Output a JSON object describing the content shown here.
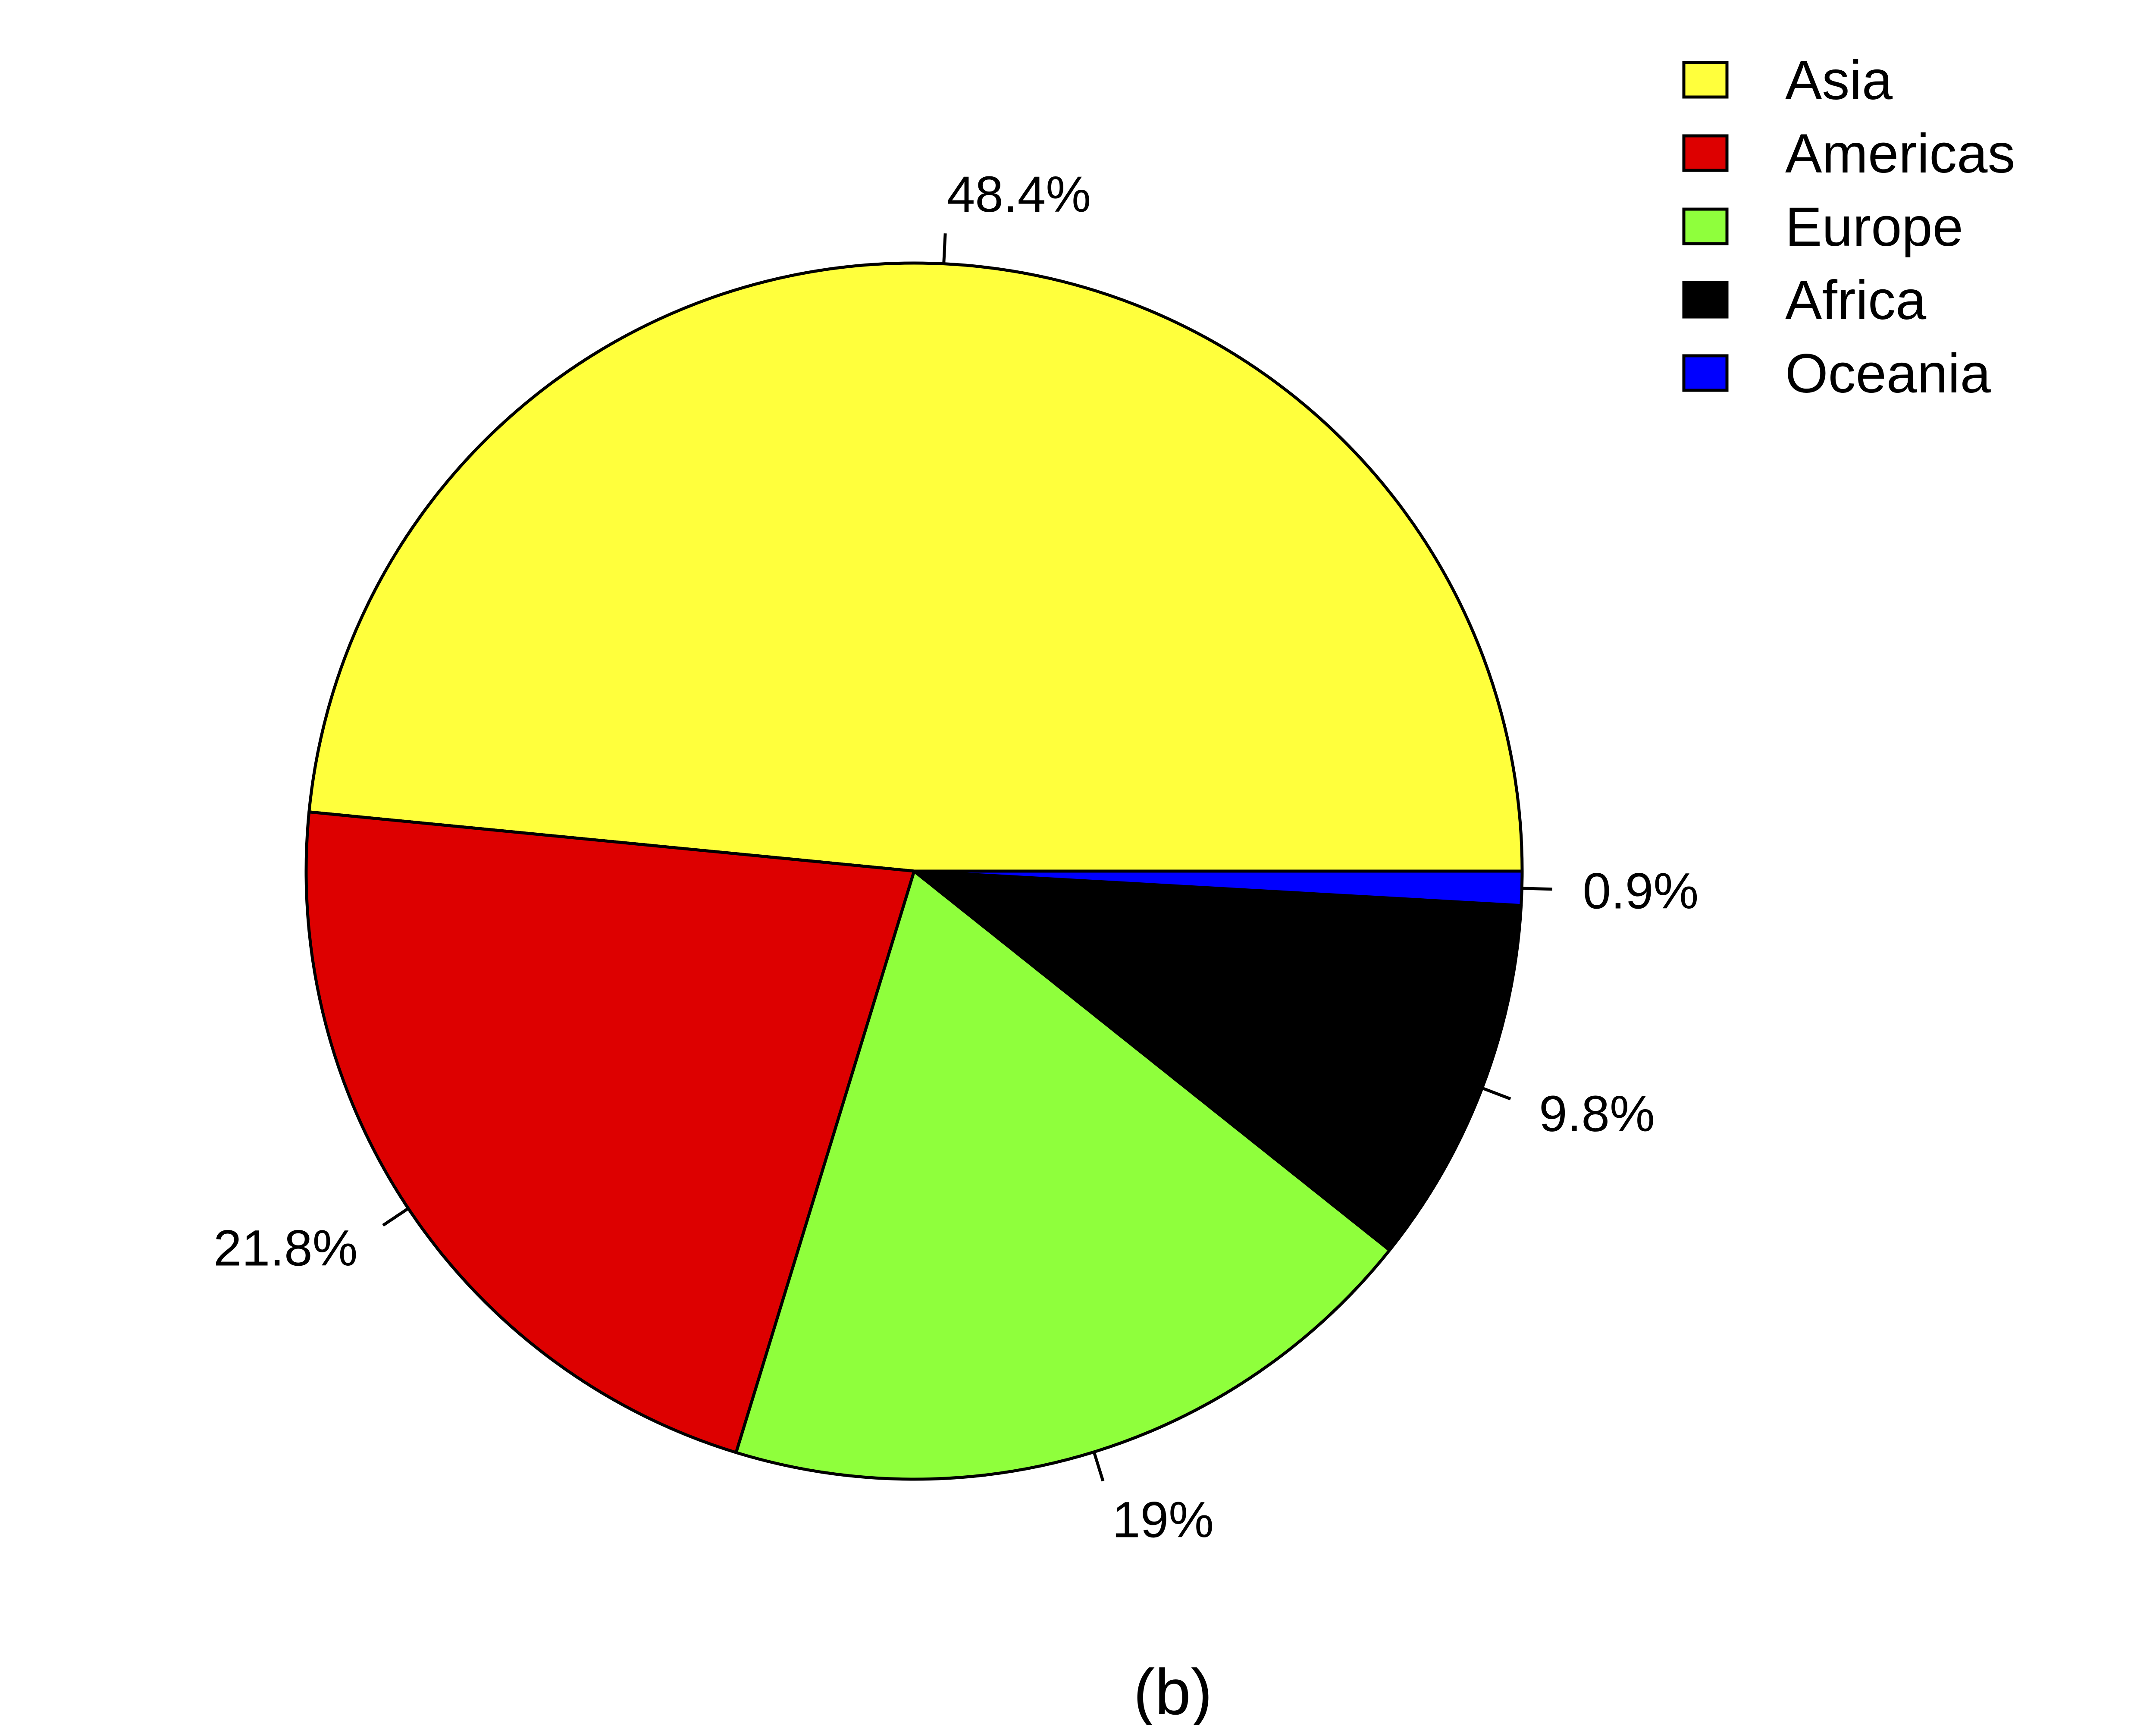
{
  "chart_data": {
    "type": "pie",
    "categories": [
      "Asia",
      "Americas",
      "Europe",
      "Africa",
      "Oceania"
    ],
    "values": [
      48.4,
      21.8,
      19.0,
      9.8,
      0.9
    ],
    "labels": [
      "48.4%",
      "21.8%",
      "19%",
      "9.8%",
      "0.9%"
    ],
    "colors": [
      "#ffff3c",
      "#dd0000",
      "#8fff3c",
      "#000000",
      "#0000ff"
    ],
    "direction": "counterclockwise",
    "start_angle": "3 o'clock",
    "legend": {
      "placement": "top-right",
      "entries": [
        "Asia",
        "Americas",
        "Europe",
        "Africa",
        "Oceania"
      ]
    },
    "caption": "(b)"
  }
}
